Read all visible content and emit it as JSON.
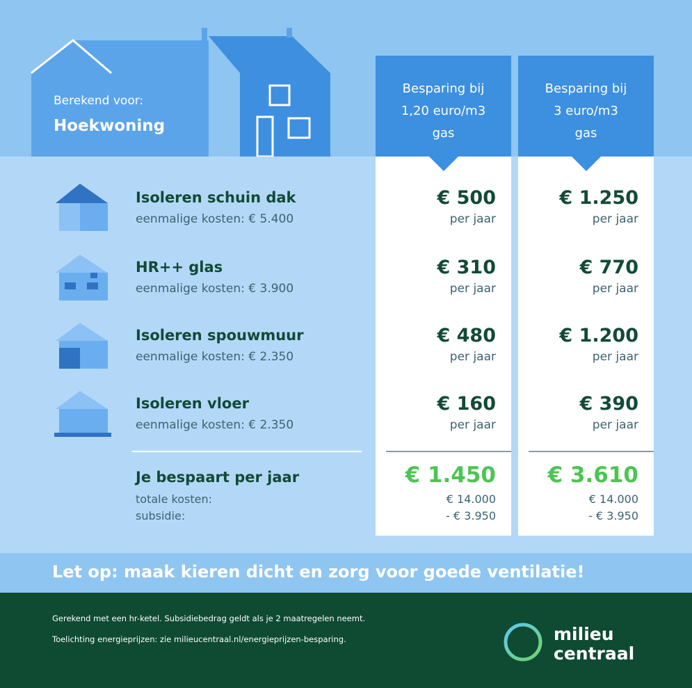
{
  "header": {
    "label": "Berekend voor:",
    "title": "Hoekwoning"
  },
  "columns": [
    [
      "Besparing bij",
      "1,20 euro/m3",
      "gas"
    ],
    [
      "Besparing bij",
      "3 euro/m3",
      "gas"
    ]
  ],
  "measures": [
    {
      "name": "Isoleren schuin dak",
      "cost": "eenmalige kosten: € 5.400",
      "savings": [
        {
          "amount": "€ 500",
          "unit": "per jaar"
        },
        {
          "amount": "€ 1.250",
          "unit": "per jaar"
        }
      ]
    },
    {
      "name": "HR++ glas",
      "cost": "eenmalige kosten: € 3.900",
      "savings": [
        {
          "amount": "€ 310",
          "unit": "per jaar"
        },
        {
          "amount": "€ 770",
          "unit": "per jaar"
        }
      ]
    },
    {
      "name": "Isoleren spouwmuur",
      "cost": "eenmalige kosten: € 2.350",
      "savings": [
        {
          "amount": "€ 480",
          "unit": "per jaar"
        },
        {
          "amount": "€ 1.200",
          "unit": "per jaar"
        }
      ]
    },
    {
      "name": "Isoleren vloer",
      "cost": "eenmalige kosten: € 2.350",
      "savings": [
        {
          "amount": "€ 160",
          "unit": "per jaar"
        },
        {
          "amount": "€ 390",
          "unit": "per jaar"
        }
      ]
    }
  ],
  "totals": {
    "label": "Je bespaart per jaar",
    "lines": [
      "totale kosten:",
      "subsidie:"
    ],
    "columns": [
      {
        "total": "€ 1.450",
        "costs": "€ 14.000",
        "subsidy": "- € 3.950"
      },
      {
        "total": "€ 3.610",
        "costs": "€ 14.000",
        "subsidy": "- € 3.950"
      }
    ]
  },
  "notice": "Let op: maak kieren dicht en zorg voor goede ventilatie!",
  "footer": {
    "lines": [
      "Gerekend met een hr-ketel. Subsidiebedrag geldt als je 2 maatregelen neemt.",
      "Toelichting energieprijzen: zie milieucentraal.nl/energieprijzen-besparing."
    ],
    "logo": [
      "milieu",
      "centraal"
    ]
  }
}
